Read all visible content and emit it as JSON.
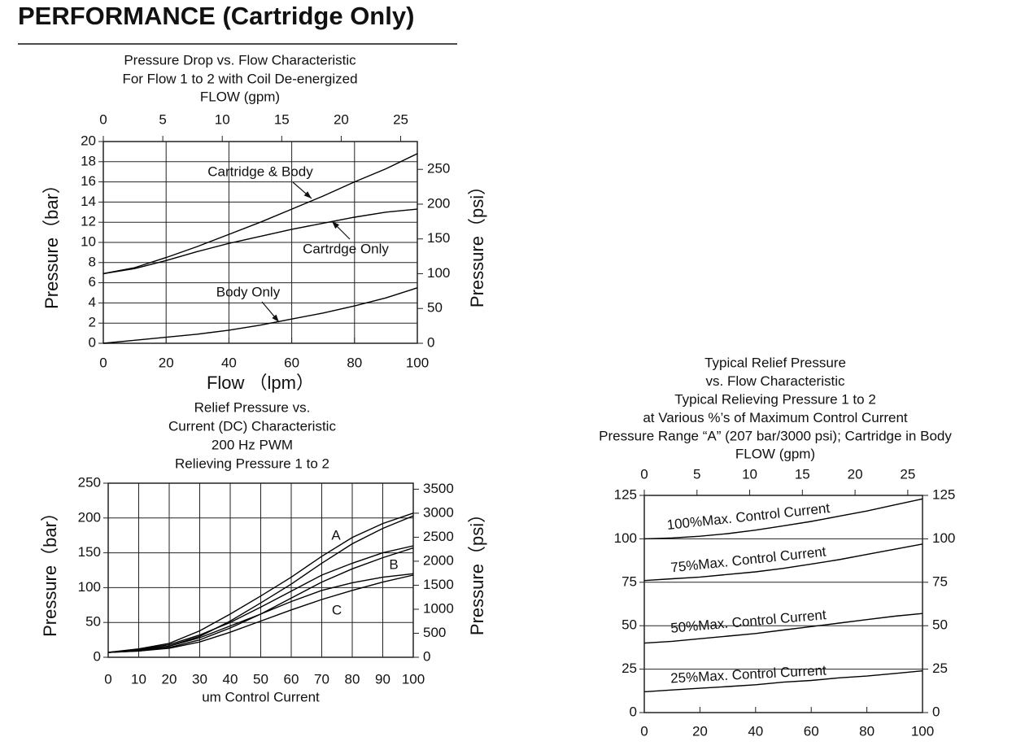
{
  "header": {
    "title": "PERFORMANCE (Cartridge Only)"
  },
  "chart_data": [
    {
      "type": "line",
      "title": [
        "Pressure Drop vs. Flow Characteristic",
        "For Flow 1 to 2 with Coil De-energized"
      ],
      "x2label": "FLOW (gpm)",
      "xlabel": "Flow （lpm）",
      "ylabel": "Pressure（bar）",
      "y2label": "Pressure（psi）",
      "x": [
        0,
        10,
        20,
        30,
        40,
        50,
        60,
        70,
        80,
        90,
        100
      ],
      "xlim": [
        0,
        100
      ],
      "xticks": [
        0,
        20,
        40,
        60,
        80,
        100
      ],
      "x2lim": [
        0,
        26.4
      ],
      "x2ticks": [
        0,
        5,
        10,
        15,
        20,
        25
      ],
      "ylim": [
        0,
        20
      ],
      "yticks": [
        0,
        2,
        4,
        6,
        8,
        10,
        12,
        14,
        16,
        18,
        20
      ],
      "y2lim": [
        0,
        290
      ],
      "y2ticks": [
        0,
        50,
        100,
        150,
        200,
        250
      ],
      "grid": "both",
      "series": [
        {
          "name": "Cartridge & Body",
          "color": "#000000",
          "values": [
            6.9,
            7.5,
            8.5,
            9.6,
            10.8,
            12,
            13.3,
            14.6,
            16,
            17.3,
            18.8
          ]
        },
        {
          "name": "Cartrdge Only",
          "color": "#000000",
          "values": [
            6.9,
            7.4,
            8.2,
            9.1,
            9.9,
            10.6,
            11.3,
            11.9,
            12.5,
            13,
            13.3
          ]
        },
        {
          "name": "Body Only",
          "color": "#000000",
          "values": [
            0,
            0.3,
            0.6,
            0.9,
            1.3,
            1.8,
            2.4,
            3.0,
            3.7,
            4.5,
            5.5
          ]
        }
      ]
    },
    {
      "type": "band",
      "title": [
        "Relief Pressure vs.",
        "Current (DC) Characteristic",
        "200 Hz PWM",
        "Relieving Pressure 1 to 2"
      ],
      "xlabel": "um Control Current",
      "ylabel": "Pressure（bar）",
      "y2label": "Pressure（psi）",
      "x": [
        0,
        10,
        20,
        30,
        40,
        50,
        60,
        70,
        80,
        90,
        100
      ],
      "xlim": [
        0,
        100
      ],
      "xticks": [
        0,
        10,
        20,
        30,
        40,
        50,
        60,
        70,
        80,
        90,
        100
      ],
      "ylim": [
        0,
        250
      ],
      "yticks": [
        0,
        50,
        100,
        150,
        200,
        250
      ],
      "y2lim": [
        0,
        3625
      ],
      "y2ticks": [
        0,
        500,
        1000,
        1500,
        2000,
        2500,
        3000,
        3500
      ],
      "grid": "both",
      "series": [
        {
          "name": "A",
          "color": "#000000",
          "values": [
            7,
            12,
            20,
            38,
            62,
            88,
            115,
            145,
            172,
            192,
            207
          ],
          "values_return": [
            7,
            10,
            16,
            30,
            52,
            78,
            105,
            135,
            163,
            185,
            203
          ]
        },
        {
          "name": "B",
          "color": "#000000",
          "values": [
            7,
            11,
            18,
            32,
            50,
            72,
            95,
            118,
            135,
            150,
            160
          ],
          "values_return": [
            7,
            9,
            14,
            25,
            42,
            62,
            85,
            108,
            127,
            143,
            157
          ]
        },
        {
          "name": "C",
          "color": "#000000",
          "values": [
            7,
            10,
            16,
            28,
            45,
            62,
            80,
            96,
            107,
            115,
            120
          ],
          "values_return": [
            7,
            9,
            13,
            22,
            36,
            52,
            68,
            83,
            96,
            108,
            118
          ]
        }
      ]
    },
    {
      "type": "line",
      "title": [
        "Typical Relief Pressure",
        "vs. Flow Characteristic",
        "Typical Relieving Pressure 1 to 2",
        "at Various %’s of Maximum Control Current",
        "Pressure Range “A” (207 bar/3000 psi); Cartridge in Body"
      ],
      "x2label": "FLOW (gpm)",
      "x": [
        0,
        10,
        20,
        30,
        40,
        50,
        60,
        70,
        80,
        90,
        100
      ],
      "xlim": [
        0,
        100
      ],
      "xticks": [
        0,
        20,
        40,
        60,
        80,
        100
      ],
      "x2lim": [
        0,
        26.4
      ],
      "x2ticks": [
        0,
        5,
        10,
        15,
        20,
        25
      ],
      "ylim": [
        0,
        125
      ],
      "yticks": [
        0,
        25,
        50,
        75,
        100,
        125
      ],
      "y2lim": [
        0,
        125
      ],
      "y2ticks": [
        0,
        25,
        50,
        75,
        100,
        125
      ],
      "grid": "y",
      "series": [
        {
          "name": "100%Max. Control Current",
          "color": "#000000",
          "values": [
            100,
            100.5,
            101.5,
            103,
            105,
            107.5,
            110,
            113,
            116,
            119.5,
            123
          ]
        },
        {
          "name": "75%Max. Control Current",
          "color": "#000000",
          "values": [
            76,
            77,
            78,
            79.5,
            81,
            83,
            85.5,
            88,
            91,
            94,
            97
          ]
        },
        {
          "name": "50%Max. Control Current",
          "color": "#000000",
          "values": [
            40,
            41,
            42.5,
            44,
            45.5,
            47.5,
            49.5,
            51.5,
            53.5,
            55.5,
            57
          ]
        },
        {
          "name": "25%Max. Control Current",
          "color": "#000000",
          "values": [
            12,
            13,
            14,
            15,
            16,
            17.5,
            18.5,
            20,
            21,
            22.5,
            24
          ]
        }
      ]
    }
  ]
}
